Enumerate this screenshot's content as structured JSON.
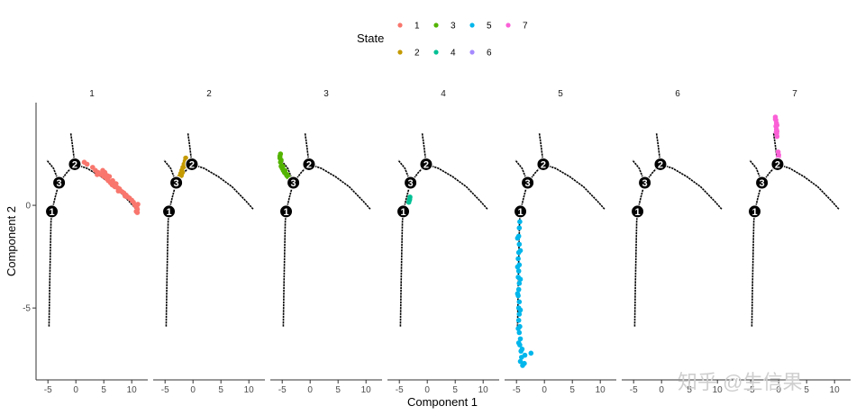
{
  "chart_data": {
    "type": "scatter",
    "xlabel": "Component 1",
    "ylabel": "Component 2",
    "xlim": [
      -6,
      13
    ],
    "ylim": [
      -8.5,
      5
    ],
    "x_ticks": [
      -5,
      0,
      5,
      10
    ],
    "y_ticks": [
      0,
      -5
    ],
    "legend": {
      "title": "State",
      "position": "top",
      "items": [
        {
          "label": "1",
          "color": "#F8766D"
        },
        {
          "label": "2",
          "color": "#C49A00"
        },
        {
          "label": "3",
          "color": "#53B400"
        },
        {
          "label": "4",
          "color": "#00C094"
        },
        {
          "label": "5",
          "color": "#00B6EB"
        },
        {
          "label": "6",
          "color": "#A58AFF"
        },
        {
          "label": "7",
          "color": "#FB61D7"
        }
      ]
    },
    "trajectory": {
      "branch_points": [
        {
          "label": "1",
          "x": -4.3,
          "y": -0.3
        },
        {
          "label": "2",
          "x": -0.2,
          "y": 2.0
        },
        {
          "label": "3",
          "x": -3.0,
          "y": 1.1
        }
      ],
      "segments": [
        [
          [
            -4.8,
            -5.9
          ],
          [
            -4.7,
            -4.0
          ],
          [
            -4.55,
            -2.0
          ],
          [
            -4.45,
            -0.8
          ],
          [
            -4.3,
            -0.3
          ]
        ],
        [
          [
            -4.3,
            -0.3
          ],
          [
            -3.7,
            0.4
          ],
          [
            -3.0,
            1.1
          ]
        ],
        [
          [
            -3.0,
            1.1
          ],
          [
            -4.0,
            1.8
          ],
          [
            -5.2,
            2.2
          ]
        ],
        [
          [
            -3.0,
            1.1
          ],
          [
            -1.6,
            1.6
          ],
          [
            -0.2,
            2.0
          ]
        ],
        [
          [
            -0.2,
            2.0
          ],
          [
            -0.6,
            2.9
          ],
          [
            -0.9,
            3.5
          ]
        ],
        [
          [
            -0.2,
            2.0
          ],
          [
            2.0,
            1.8
          ],
          [
            4.5,
            1.4
          ],
          [
            7.0,
            0.9
          ],
          [
            9.5,
            0.2
          ],
          [
            10.8,
            -0.2
          ]
        ]
      ]
    },
    "panels": [
      {
        "state": "1",
        "points": [
          [
            1.5,
            2.1
          ],
          [
            2.0,
            2.0
          ],
          [
            3.0,
            1.85
          ],
          [
            3.5,
            1.7
          ],
          [
            4.0,
            1.6
          ],
          [
            4.5,
            1.5
          ],
          [
            5.0,
            1.4
          ],
          [
            5.2,
            1.6
          ],
          [
            5.5,
            1.3
          ],
          [
            5.8,
            1.2
          ],
          [
            6.0,
            1.4
          ],
          [
            6.2,
            1.1
          ],
          [
            6.5,
            1.0
          ],
          [
            6.8,
            0.95
          ],
          [
            7.0,
            0.9
          ],
          [
            7.2,
            1.05
          ],
          [
            7.5,
            0.85
          ],
          [
            7.8,
            0.8
          ],
          [
            8.0,
            0.7
          ],
          [
            8.3,
            0.65
          ],
          [
            8.6,
            0.6
          ],
          [
            9.0,
            0.5
          ],
          [
            9.3,
            0.4
          ],
          [
            9.6,
            0.35
          ],
          [
            10.0,
            0.25
          ],
          [
            10.3,
            0.15
          ],
          [
            10.6,
            0.0
          ],
          [
            10.9,
            -0.1
          ],
          [
            11.0,
            -0.2
          ],
          [
            11.0,
            -0.35
          ],
          [
            11.1,
            0.05
          ],
          [
            10.8,
            -0.3
          ],
          [
            3.8,
            1.5
          ],
          [
            4.8,
            1.7
          ],
          [
            6.6,
            1.2
          ],
          [
            8.8,
            0.45
          ],
          [
            5.6,
            1.45
          ],
          [
            7.6,
            0.7
          ]
        ]
      },
      {
        "state": "2",
        "points": [
          [
            -2.4,
            1.4
          ],
          [
            -2.2,
            1.55
          ],
          [
            -2.0,
            1.7
          ],
          [
            -1.8,
            1.85
          ],
          [
            -1.6,
            2.0
          ],
          [
            -1.4,
            2.15
          ],
          [
            -1.3,
            2.3
          ],
          [
            -1.5,
            1.9
          ],
          [
            -1.9,
            1.6
          ],
          [
            -2.1,
            1.45
          ]
        ]
      },
      {
        "state": "3",
        "points": [
          [
            -5.3,
            2.5
          ],
          [
            -5.4,
            2.3
          ],
          [
            -5.3,
            2.1
          ],
          [
            -5.2,
            1.9
          ],
          [
            -5.0,
            1.8
          ],
          [
            -4.8,
            1.7
          ],
          [
            -4.6,
            1.6
          ],
          [
            -4.4,
            1.55
          ],
          [
            -4.2,
            1.45
          ],
          [
            -4.0,
            1.4
          ],
          [
            -3.8,
            1.35
          ],
          [
            -3.6,
            1.3
          ],
          [
            -5.2,
            2.2
          ],
          [
            -4.9,
            1.9
          ],
          [
            -4.5,
            1.7
          ],
          [
            -4.1,
            1.5
          ],
          [
            -5.4,
            2.4
          ]
        ]
      },
      {
        "state": "4",
        "points": [
          [
            -3.1,
            0.4
          ],
          [
            -3.2,
            0.25
          ],
          [
            -3.3,
            0.15
          ],
          [
            -3.15,
            0.3
          ]
        ]
      },
      {
        "state": "5",
        "points": [
          [
            -4.4,
            -0.8
          ],
          [
            -4.5,
            -1.1
          ],
          [
            -4.6,
            -1.5
          ],
          [
            -4.5,
            -1.9
          ],
          [
            -4.6,
            -2.3
          ],
          [
            -4.7,
            -2.6
          ],
          [
            -4.5,
            -2.9
          ],
          [
            -4.6,
            -3.2
          ],
          [
            -4.7,
            -3.5
          ],
          [
            -4.5,
            -3.8
          ],
          [
            -4.6,
            -4.1
          ],
          [
            -4.7,
            -4.4
          ],
          [
            -4.5,
            -4.7
          ],
          [
            -4.6,
            -5.0
          ],
          [
            -4.5,
            -5.3
          ],
          [
            -4.6,
            -5.6
          ],
          [
            -4.4,
            -5.9
          ],
          [
            -4.5,
            -6.2
          ],
          [
            -4.3,
            -6.5
          ],
          [
            -4.4,
            -6.8
          ],
          [
            -4.2,
            -7.1
          ],
          [
            -4.1,
            -7.4
          ],
          [
            -4.3,
            -7.6
          ],
          [
            -3.9,
            -7.8
          ],
          [
            -3.6,
            -7.7
          ],
          [
            -2.4,
            -7.2
          ],
          [
            -3.5,
            -7.3
          ],
          [
            -4.0,
            -7.0
          ],
          [
            -4.8,
            -1.6
          ],
          [
            -4.3,
            -2.2
          ],
          [
            -4.8,
            -3.0
          ],
          [
            -4.3,
            -3.6
          ],
          [
            -4.8,
            -4.3
          ],
          [
            -4.3,
            -5.1
          ],
          [
            -4.7,
            -6.0
          ],
          [
            -4.6,
            -6.7
          ]
        ]
      },
      {
        "state": "6",
        "points": []
      },
      {
        "state": "7",
        "points": [
          [
            -0.6,
            4.3
          ],
          [
            -0.5,
            4.15
          ],
          [
            -0.4,
            4.0
          ],
          [
            -0.5,
            3.85
          ],
          [
            -0.4,
            3.7
          ],
          [
            -0.3,
            3.6
          ],
          [
            -0.35,
            3.5
          ],
          [
            -0.3,
            3.35
          ],
          [
            -0.1,
            2.6
          ],
          [
            0.0,
            2.45
          ],
          [
            -0.05,
            2.35
          ],
          [
            -0.6,
            4.2
          ],
          [
            -0.3,
            3.9
          ],
          [
            -0.45,
            3.55
          ]
        ]
      }
    ]
  },
  "watermark": "知乎 @生信果"
}
